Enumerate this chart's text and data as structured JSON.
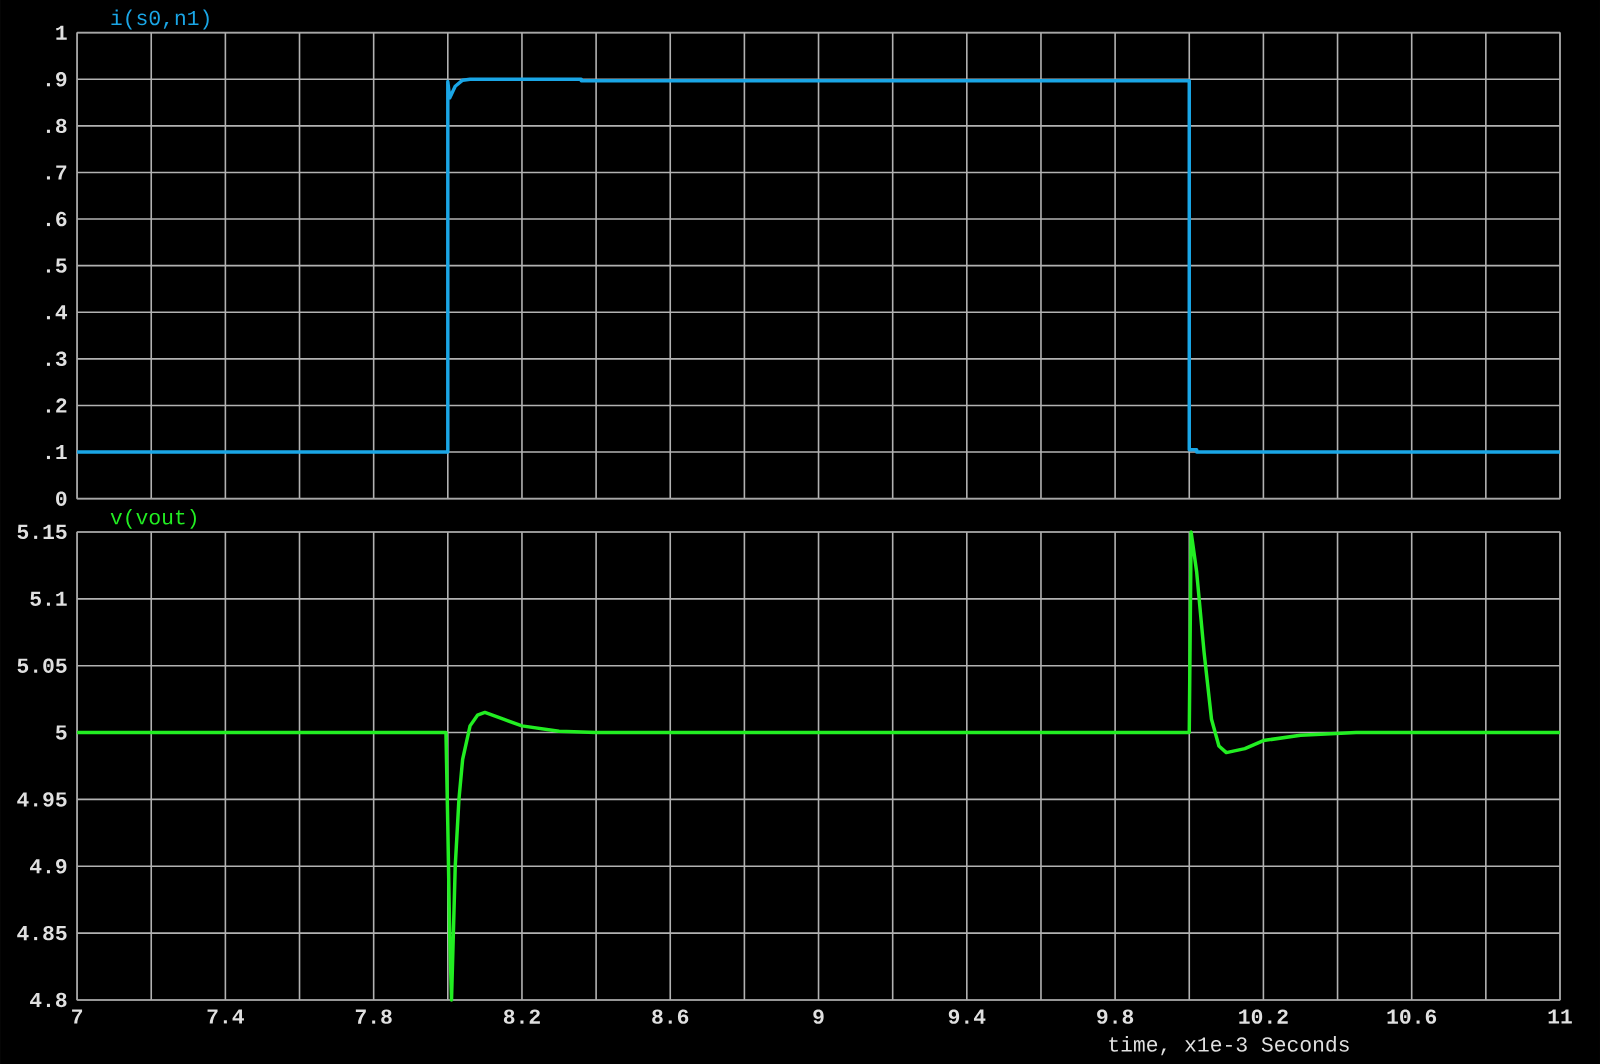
{
  "chart_data": [
    {
      "type": "line",
      "xlim": [
        7,
        11
      ],
      "ylim": [
        0,
        1
      ],
      "grid": true,
      "tick_labels": "y",
      "xticks": [
        7,
        {
          "value": 7.2,
          "label": null
        },
        7.4,
        {
          "value": 7.6,
          "label": null
        },
        7.8,
        {
          "value": 8.0,
          "label": null
        },
        8.2,
        {
          "value": 8.4,
          "label": null
        },
        8.6,
        {
          "value": 8.8,
          "label": null
        },
        9,
        {
          "value": 9.2,
          "label": null
        },
        9.4,
        {
          "value": 9.6,
          "label": null
        },
        9.8,
        {
          "value": 10.0,
          "label": null
        },
        10.2,
        {
          "value": 10.4,
          "label": null
        },
        10.6,
        {
          "value": 10.8,
          "label": null
        },
        11
      ],
      "yticks": [
        0,
        {
          "value": 0.1,
          "label": ".1"
        },
        {
          "value": 0.2,
          "label": ".2"
        },
        {
          "value": 0.3,
          "label": ".3"
        },
        {
          "value": 0.4,
          "label": ".4"
        },
        {
          "value": 0.5,
          "label": ".5"
        },
        {
          "value": 0.6,
          "label": ".6"
        },
        {
          "value": 0.7,
          "label": ".7"
        },
        {
          "value": 0.8,
          "label": ".8"
        },
        {
          "value": 0.9,
          "label": ".9"
        },
        1
      ],
      "series": [
        {
          "name": "i(s0,n1)",
          "color": "#1aa6e6",
          "x": [
            7,
            8.0,
            8.0,
            8.005,
            8.02,
            8.04,
            8.06,
            8.36,
            8.36,
            10.0,
            10.0,
            10.02,
            10.02,
            11
          ],
          "values": [
            0.1,
            0.1,
            0.895,
            0.86,
            0.885,
            0.898,
            0.9,
            0.9,
            0.897,
            0.897,
            0.105,
            0.105,
            0.1,
            0.1
          ]
        }
      ]
    },
    {
      "type": "line",
      "xlim": [
        7,
        11
      ],
      "ylim": [
        4.8,
        5.15
      ],
      "grid": true,
      "xlabel": "time, x1e-3 Seconds",
      "xticks": [
        7,
        {
          "value": 7.2,
          "label": null
        },
        7.4,
        {
          "value": 7.6,
          "label": null
        },
        7.8,
        {
          "value": 8.0,
          "label": null
        },
        8.2,
        {
          "value": 8.4,
          "label": null
        },
        8.6,
        {
          "value": 8.8,
          "label": null
        },
        9,
        {
          "value": 9.2,
          "label": null
        },
        9.4,
        {
          "value": 9.6,
          "label": null
        },
        9.8,
        {
          "value": 10.0,
          "label": null
        },
        10.2,
        {
          "value": 10.4,
          "label": null
        },
        10.6,
        {
          "value": 10.8,
          "label": null
        },
        11
      ],
      "yticks": [
        4.8,
        4.85,
        4.9,
        4.95,
        5,
        5.05,
        5.1,
        5.15
      ],
      "series": [
        {
          "name": "v(vout)",
          "color": "#22ee22",
          "x": [
            7,
            7.995,
            8.0,
            8.005,
            8.01,
            8.015,
            8.02,
            8.03,
            8.04,
            8.06,
            8.08,
            8.1,
            8.15,
            8.2,
            8.3,
            8.4,
            10.0,
            10.005,
            10.02,
            10.04,
            10.06,
            10.08,
            10.1,
            10.15,
            10.2,
            10.3,
            10.45,
            11
          ],
          "values": [
            5,
            5,
            4.93,
            4.85,
            4.8,
            4.85,
            4.9,
            4.95,
            4.98,
            5.005,
            5.013,
            5.015,
            5.01,
            5.005,
            5.001,
            5,
            5,
            5.15,
            5.12,
            5.06,
            5.01,
            4.99,
            4.985,
            4.988,
            4.994,
            4.998,
            5,
            5
          ]
        }
      ]
    }
  ]
}
